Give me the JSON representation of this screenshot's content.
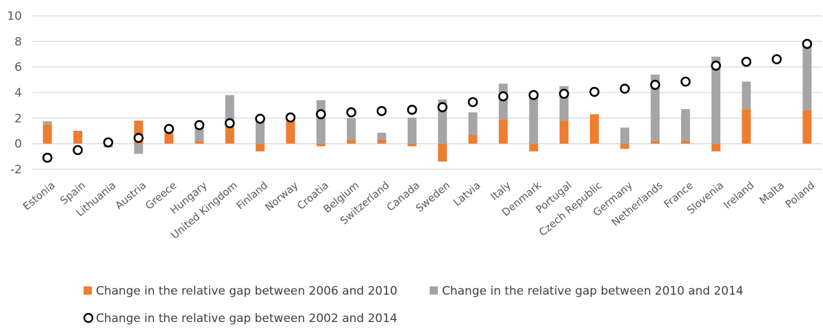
{
  "chart_data": {
    "type": "bar",
    "title": "",
    "xlabel": "",
    "ylabel": "",
    "ylim": [
      -2,
      10
    ],
    "yticks": [
      -2,
      0,
      2,
      4,
      6,
      8,
      10
    ],
    "grid": "horizontal",
    "legend_position": "bottom",
    "colors": {
      "orange": "#ED7D31",
      "gray": "#A5A5A5",
      "marker_stroke": "#000000",
      "grid": "#D9D9D9",
      "tick_text": "#595959"
    },
    "categories": [
      "Estonia",
      "Spain",
      "Lithuania",
      "Austria",
      "Greece",
      "Hungary",
      "United Kingdom",
      "Finland",
      "Norway",
      "Croatia",
      "Belgium",
      "Switzerland",
      "Canada",
      "Sweden",
      "Latvia",
      "Italy",
      "Denmark",
      "Portugal",
      "Czech Republic",
      "Germany",
      "Netherlands",
      "France",
      "Slovenia",
      "Ireland",
      "Malta",
      "Poland"
    ],
    "series": [
      {
        "name": "Change in the relative gap between 2006 and 2010",
        "kind": "bar",
        "stacked": true,
        "values": [
          1.5,
          1.0,
          0.0,
          1.8,
          0.8,
          0.2,
          1.6,
          -0.6,
          2.0,
          -0.2,
          0.3,
          0.3,
          -0.2,
          -1.4,
          0.7,
          1.9,
          -0.6,
          1.8,
          2.3,
          -0.4,
          0.2,
          0.2,
          -0.6,
          2.7,
          0.0,
          2.6
        ]
      },
      {
        "name": "Change in the relative gap between 2010 and 2014",
        "kind": "bar",
        "stacked": true,
        "values": [
          0.25,
          0.0,
          -0.3,
          -0.8,
          0.3,
          1.1,
          2.2,
          2.0,
          0.0,
          3.4,
          1.7,
          0.55,
          2.05,
          3.45,
          1.75,
          2.8,
          3.8,
          2.7,
          0.0,
          1.25,
          5.2,
          2.5,
          6.8,
          2.15,
          0.0,
          5.2
        ]
      },
      {
        "name": "Change in the relative gap between 2002 and 2014",
        "kind": "marker",
        "values": [
          -1.1,
          -0.5,
          0.1,
          0.45,
          1.15,
          1.45,
          1.6,
          1.95,
          2.05,
          2.3,
          2.45,
          2.55,
          2.65,
          2.85,
          3.25,
          3.7,
          3.8,
          3.9,
          4.05,
          4.3,
          4.6,
          4.85,
          6.1,
          6.4,
          6.6,
          7.8
        ]
      }
    ]
  }
}
